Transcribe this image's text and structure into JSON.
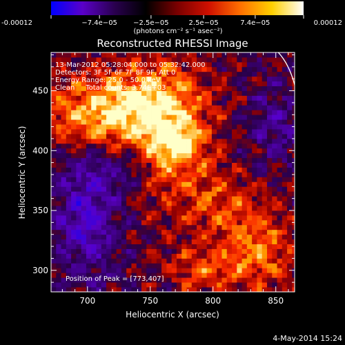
{
  "chart_data": {
    "type": "heatmap",
    "title": "Reconstructed RHESSI Image",
    "xlabel": "Heliocentric X (arcsec)",
    "ylabel": "Heliocentric Y (arcsec)",
    "xlim": [
      671,
      865
    ],
    "ylim": [
      282,
      482
    ],
    "xticks": [
      700,
      750,
      800,
      850
    ],
    "yticks": [
      300,
      350,
      400,
      450
    ],
    "grid": false,
    "colorbar": {
      "range": [
        -0.00012,
        0.00012
      ],
      "tick_values": [
        -0.00012,
        -7.4e-05,
        -2.5e-05,
        2.5e-05,
        7.4e-05,
        0.00012
      ],
      "tick_labels": [
        "-0.00012",
        "−7.4e−05",
        "−2.5e−05",
        "2.5e−05",
        "7.4e−05",
        "0.00012"
      ],
      "units_label": "(photons cm⁻² s⁻¹ asec⁻²)",
      "stops": [
        "#0000ff",
        "#5a00c8",
        "#2a0050",
        "#000000",
        "#7a0000",
        "#d01000",
        "#ff7000",
        "#ffd000",
        "#ffffff"
      ]
    },
    "annotations": [
      "13-Mar-2012 05:28:04.000 to 05:32:42.000",
      "Detectors: 3F 5F 6F 7F 8F 9F, Att 0",
      "Energy Range: 25.0 - 50.0 keV",
      "Clean     Total counts: 3.74E+03",
      "Position of Peak = [773,407]"
    ],
    "footer": "4-May-2014 15:24",
    "peak": [
      773,
      407
    ],
    "limb_arc": [
      [
        852,
        482
      ],
      [
        865,
        455
      ]
    ],
    "blobs": [
      {
        "x": 760,
        "y": 415,
        "sx": 35,
        "sy": 55,
        "a": 0.75
      },
      {
        "x": 720,
        "y": 440,
        "sx": 55,
        "sy": 28,
        "a": 0.65
      },
      {
        "x": 773,
        "y": 407,
        "sx": 16,
        "sy": 14,
        "a": 0.45
      },
      {
        "x": 835,
        "y": 320,
        "sx": 30,
        "sy": 40,
        "a": 0.55
      },
      {
        "x": 790,
        "y": 300,
        "sx": 30,
        "sy": 20,
        "a": 0.4
      },
      {
        "x": 800,
        "y": 360,
        "sx": 25,
        "sy": 30,
        "a": 0.35
      },
      {
        "x": 700,
        "y": 420,
        "sx": 35,
        "sy": 20,
        "a": 0.35
      },
      {
        "x": 700,
        "y": 350,
        "sx": 25,
        "sy": 55,
        "a": -0.55
      },
      {
        "x": 735,
        "y": 385,
        "sx": 22,
        "sy": 22,
        "a": -0.35
      },
      {
        "x": 850,
        "y": 420,
        "sx": 20,
        "sy": 35,
        "a": -0.3
      }
    ]
  }
}
